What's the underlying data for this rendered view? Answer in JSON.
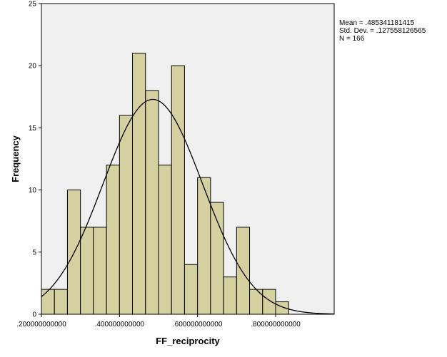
{
  "chart_data": {
    "type": "bar",
    "subtype": "histogram",
    "xlabel": "FF_reciprocity",
    "ylabel": "Frequency",
    "xlim": [
      0.2,
      0.95
    ],
    "ylim": [
      0,
      25
    ],
    "x_ticks": [
      0.2,
      0.4,
      0.6,
      0.8
    ],
    "x_tick_labels": [
      ".200000000000",
      ".400000000000",
      ".600000000000",
      ".800000000000"
    ],
    "y_ticks": [
      0,
      5,
      10,
      15,
      20,
      25
    ],
    "y_tick_labels": [
      "0",
      "5",
      "10",
      "15",
      "20",
      "25"
    ],
    "bin_width": 0.0333,
    "bin_starts": [
      0.2,
      0.2333,
      0.2667,
      0.3,
      0.3333,
      0.3667,
      0.4,
      0.4333,
      0.4667,
      0.5,
      0.5333,
      0.5667,
      0.6,
      0.6333,
      0.6667,
      0.7,
      0.7333,
      0.7667,
      0.8
    ],
    "values": [
      2,
      2,
      10,
      7,
      7,
      12,
      16,
      21,
      18,
      12,
      20,
      4,
      11,
      9,
      3,
      7,
      2,
      2,
      1
    ],
    "normal_curve": {
      "mean": 0.485341181415,
      "std": 0.127558126565,
      "n": 166
    },
    "stats": [
      "Mean = .485341181415",
      "Std. Dev. = .127558126565",
      "N = 166"
    ],
    "bar_fill": "#d4d0a0",
    "bar_stroke": "#000000",
    "plot_background": "#f0f0f0",
    "grid": false,
    "legend": "none"
  }
}
